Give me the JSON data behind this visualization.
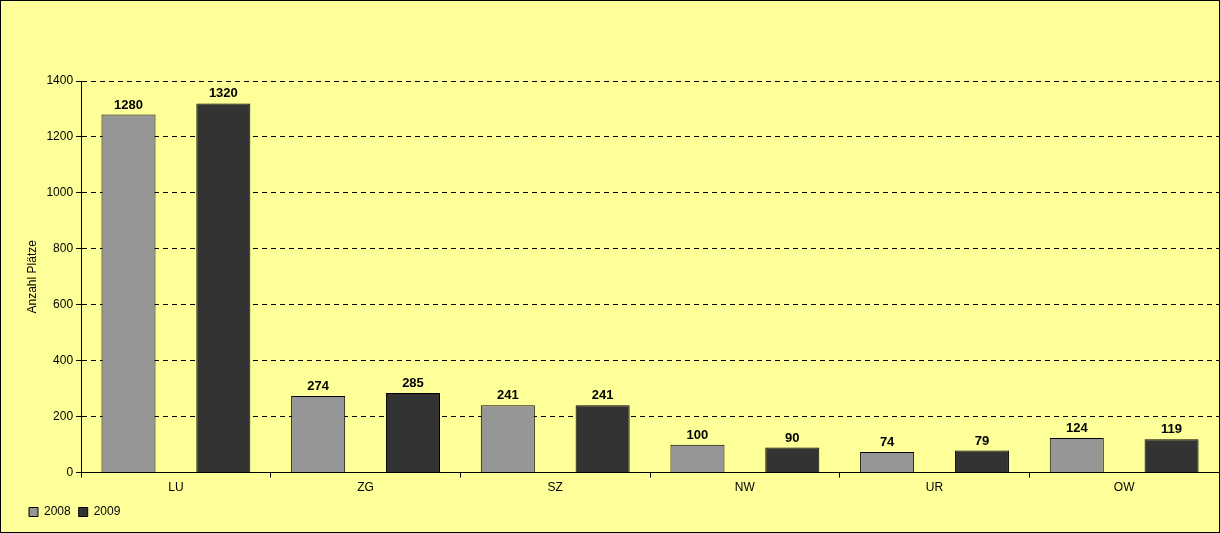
{
  "chart_data": {
    "type": "bar",
    "ylabel": "Anzahl Plätze",
    "categories": [
      "LU",
      "ZG",
      "SZ",
      "NW",
      "UR",
      "OW"
    ],
    "series": [
      {
        "name": "2008",
        "color": "#969696",
        "values": [
          1280,
          274,
          241,
          100,
          74,
          124
        ]
      },
      {
        "name": "2009",
        "color": "#333333",
        "values": [
          1320,
          285,
          241,
          90,
          79,
          119
        ]
      }
    ],
    "ylim": [
      0,
      1400
    ],
    "yticks": [
      0,
      200,
      400,
      600,
      800,
      1000,
      1200,
      1400
    ],
    "grid": "y",
    "legend": "bottom left",
    "data_labels": true
  }
}
